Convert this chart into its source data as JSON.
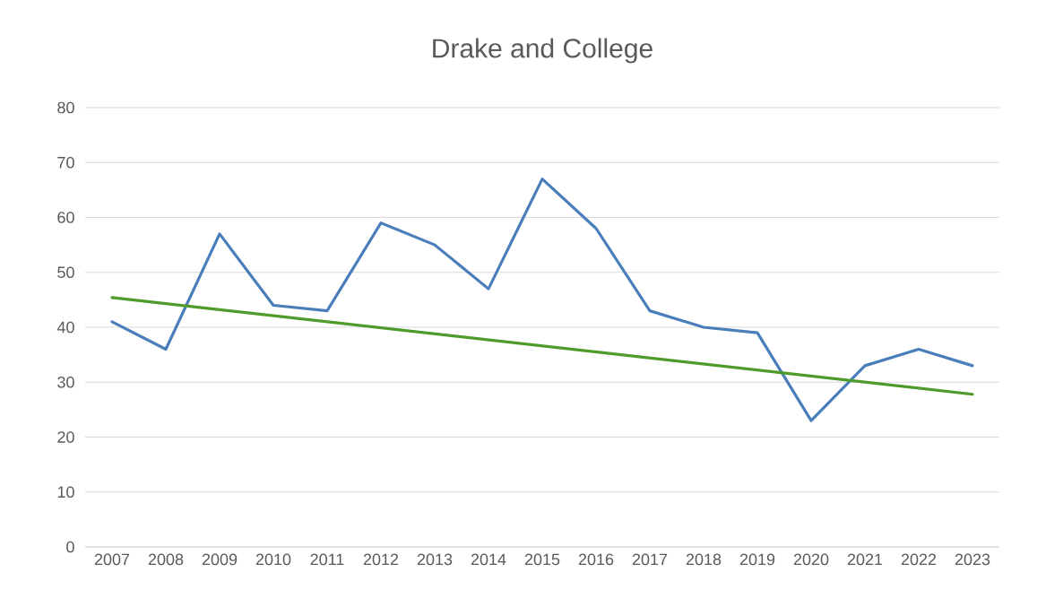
{
  "chart_data": {
    "type": "line",
    "title": "Drake and College",
    "x": [
      2007,
      2008,
      2009,
      2010,
      2011,
      2012,
      2013,
      2014,
      2015,
      2016,
      2017,
      2018,
      2019,
      2020,
      2021,
      2022,
      2023
    ],
    "xlim": [
      2006.5,
      2023.5
    ],
    "xticks": [
      2007,
      2008,
      2009,
      2010,
      2011,
      2012,
      2013,
      2014,
      2015,
      2016,
      2017,
      2018,
      2019,
      2020,
      2021,
      2022,
      2023
    ],
    "ylim": [
      0,
      80
    ],
    "yticks": [
      0,
      10,
      20,
      30,
      40,
      50,
      60,
      70,
      80
    ],
    "grid": "y",
    "line_style": "solid",
    "series": [
      {
        "color": "#4a7ebb",
        "values": [
          41,
          36,
          57,
          44,
          43,
          59,
          55,
          47,
          67,
          58,
          43,
          40,
          39,
          23,
          33,
          36,
          33
        ]
      },
      {
        "type": "line",
        "x": [
          2007,
          2023
        ],
        "color": "#4e9a2a",
        "values": [
          45.4,
          27.8
        ]
      }
    ]
  }
}
